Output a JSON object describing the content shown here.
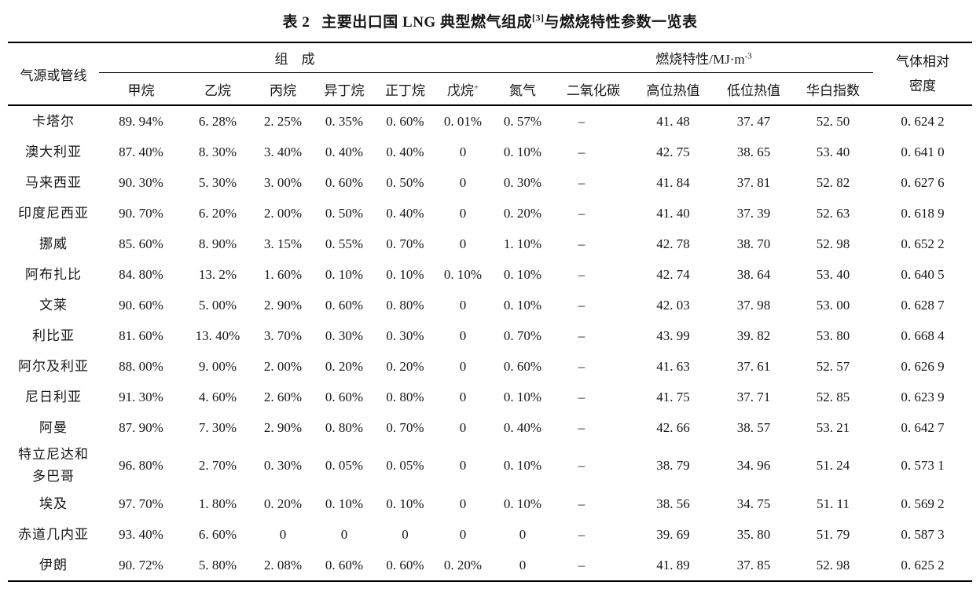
{
  "title": {
    "label": "表 2",
    "main": "主要出口国 LNG 典型燃气组成",
    "ref": "[3]",
    "suffix": "与燃烧特性参数一览表"
  },
  "table": {
    "headers": {
      "source": "气源或管线",
      "composition_group": "组　成",
      "combustion_group": "燃烧特性/MJ·m",
      "combustion_group_sup": "-3",
      "density_line1": "气体相对",
      "density_line2": "密度",
      "methane": "甲烷",
      "ethane": "乙烷",
      "propane": "丙烷",
      "isobutane": "异丁烷",
      "nbutane": "正丁烷",
      "pentane": "戊烷",
      "pentane_sup": "+",
      "nitrogen": "氮气",
      "co2": "二氧化碳",
      "hhv": "高位热值",
      "lhv": "低位热值",
      "wobbe": "华白指数"
    },
    "rows": [
      {
        "name": "卡塔尔",
        "values": [
          "89. 94%",
          "6. 28%",
          "2. 25%",
          "0. 35%",
          "0. 60%",
          "0. 01%",
          "0. 57%",
          "–",
          "41. 48",
          "37. 47",
          "52. 50",
          "0. 624 2"
        ]
      },
      {
        "name": "澳大利亚",
        "values": [
          "87. 40%",
          "8. 30%",
          "3. 40%",
          "0. 40%",
          "0. 40%",
          "0",
          "0. 10%",
          "–",
          "42. 75",
          "38. 65",
          "53. 40",
          "0. 641 0"
        ]
      },
      {
        "name": "马来西亚",
        "values": [
          "90. 30%",
          "5. 30%",
          "3. 00%",
          "0. 60%",
          "0. 50%",
          "0",
          "0. 30%",
          "–",
          "41. 84",
          "37. 81",
          "52. 82",
          "0. 627 6"
        ]
      },
      {
        "name": "印度尼西亚",
        "values": [
          "90. 70%",
          "6. 20%",
          "2. 00%",
          "0. 50%",
          "0. 40%",
          "0",
          "0. 20%",
          "–",
          "41. 40",
          "37. 39",
          "52. 63",
          "0. 618 9"
        ]
      },
      {
        "name": "挪威",
        "values": [
          "85. 60%",
          "8. 90%",
          "3. 15%",
          "0. 55%",
          "0. 70%",
          "0",
          "1. 10%",
          "–",
          "42. 78",
          "38. 70",
          "52. 98",
          "0. 652 2"
        ]
      },
      {
        "name": "阿布扎比",
        "values": [
          "84. 80%",
          "13. 2%",
          "1. 60%",
          "0. 10%",
          "0. 10%",
          "0. 10%",
          "0. 10%",
          "–",
          "42. 74",
          "38. 64",
          "53. 40",
          "0. 640 5"
        ]
      },
      {
        "name": "文莱",
        "values": [
          "90. 60%",
          "5. 00%",
          "2. 90%",
          "0. 60%",
          "0. 80%",
          "0",
          "0. 10%",
          "–",
          "42. 03",
          "37. 98",
          "53. 00",
          "0. 628 7"
        ]
      },
      {
        "name": "利比亚",
        "values": [
          "81. 60%",
          "13. 40%",
          "3. 70%",
          "0. 30%",
          "0. 30%",
          "0",
          "0. 70%",
          "–",
          "43. 99",
          "39. 82",
          "53. 80",
          "0. 668 4"
        ]
      },
      {
        "name": "阿尔及利亚",
        "values": [
          "88. 00%",
          "9. 00%",
          "2. 00%",
          "0. 20%",
          "0. 20%",
          "0",
          "0. 60%",
          "–",
          "41. 63",
          "37. 61",
          "52. 57",
          "0. 626 9"
        ]
      },
      {
        "name": "尼日利亚",
        "values": [
          "91. 30%",
          "4. 60%",
          "2. 60%",
          "0. 60%",
          "0. 80%",
          "0",
          "0. 10%",
          "–",
          "41. 75",
          "37. 71",
          "52. 85",
          "0. 623 9"
        ]
      },
      {
        "name": "阿曼",
        "values": [
          "87. 90%",
          "7. 30%",
          "2. 90%",
          "0. 80%",
          "0. 70%",
          "0",
          "0. 40%",
          "–",
          "42. 66",
          "38. 57",
          "53. 21",
          "0. 642 7"
        ]
      },
      {
        "name": "特立尼达和\n多巴哥",
        "values": [
          "96. 80%",
          "2. 70%",
          "0. 30%",
          "0. 05%",
          "0. 05%",
          "0",
          "0. 10%",
          "–",
          "38. 79",
          "34. 96",
          "51. 24",
          "0. 573 1"
        ]
      },
      {
        "name": "埃及",
        "values": [
          "97. 70%",
          "1. 80%",
          "0. 20%",
          "0. 10%",
          "0. 10%",
          "0",
          "0. 10%",
          "–",
          "38. 56",
          "34. 75",
          "51. 11",
          "0. 569 2"
        ]
      },
      {
        "name": "赤道几内亚",
        "values": [
          "93. 40%",
          "6. 60%",
          "0",
          "0",
          "0",
          "0",
          "0",
          "–",
          "39. 69",
          "35. 80",
          "51. 79",
          "0. 587 3"
        ]
      },
      {
        "name": "伊朗",
        "values": [
          "90. 72%",
          "5. 80%",
          "2. 08%",
          "0. 60%",
          "0. 60%",
          "0. 20%",
          "0",
          "–",
          "41. 89",
          "37. 85",
          "52. 98",
          "0. 625 2"
        ]
      }
    ]
  }
}
